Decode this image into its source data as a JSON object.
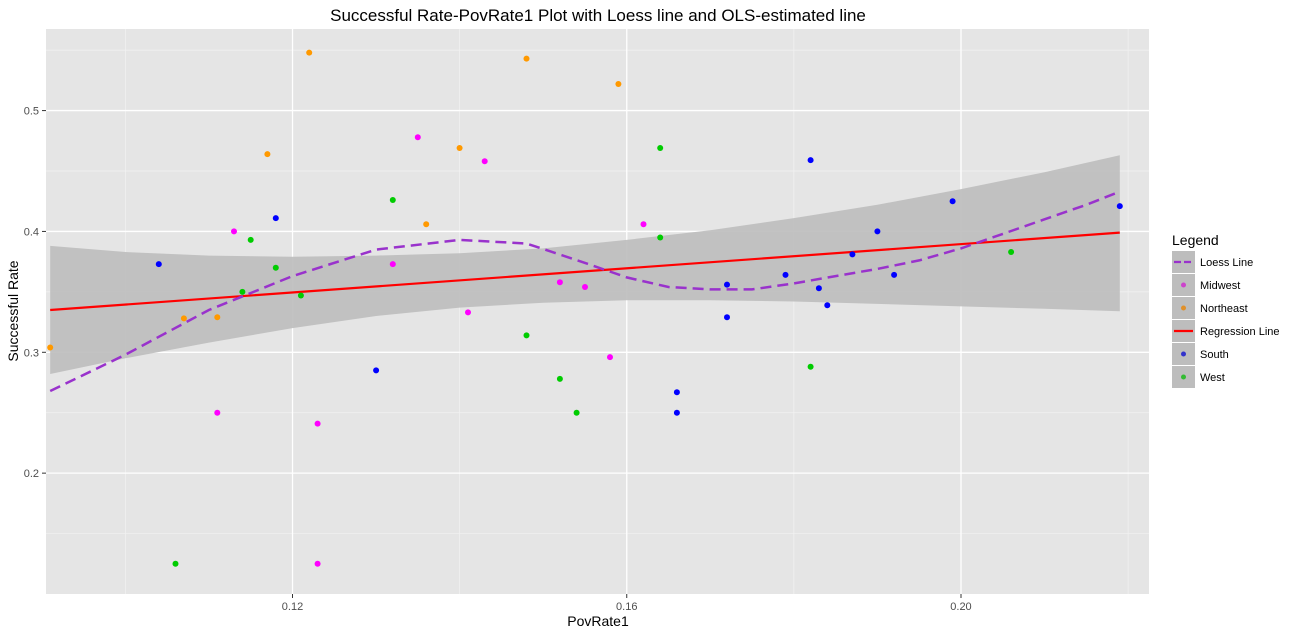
{
  "chart_data": {
    "type": "scatter",
    "title": "Successful Rate-PovRate1 Plot with Loess line and OLS-estimated line",
    "xlabel": "PovRate1",
    "ylabel": "Successful Rate",
    "xlim": [
      0.0905,
      0.2225
    ],
    "ylim": [
      0.1,
      0.5675
    ],
    "x_ticks": [
      0.12,
      0.16,
      0.2
    ],
    "x_tick_labels": [
      "0.12",
      "0.16",
      "0.20"
    ],
    "y_ticks": [
      0.2,
      0.3,
      0.4,
      0.5
    ],
    "y_tick_labels": [
      "0.2",
      "0.3",
      "0.4",
      "0.5"
    ],
    "grid": true,
    "background": "#e5e5e5",
    "legend": {
      "title": "Legend",
      "placement": "right",
      "entries": [
        {
          "label": "Loess Line",
          "kind": "dashed-line",
          "color": "#9932cc"
        },
        {
          "label": "Midwest",
          "kind": "point",
          "color": "#cc44cc"
        },
        {
          "label": "Northeast",
          "kind": "point",
          "color": "#e0902a"
        },
        {
          "label": "Regression Line",
          "kind": "line",
          "color": "#ff0000"
        },
        {
          "label": "South",
          "kind": "point",
          "color": "#3333cc"
        },
        {
          "label": "West",
          "kind": "point",
          "color": "#33bb33"
        }
      ]
    },
    "series": [
      {
        "name": "Northeast",
        "color": "#ff9900",
        "points": [
          [
            0.091,
            0.304
          ],
          [
            0.107,
            0.328
          ],
          [
            0.111,
            0.329
          ],
          [
            0.117,
            0.464
          ],
          [
            0.122,
            0.548
          ],
          [
            0.136,
            0.406
          ],
          [
            0.14,
            0.469
          ],
          [
            0.148,
            0.543
          ],
          [
            0.159,
            0.522
          ]
        ]
      },
      {
        "name": "Midwest",
        "color": "#ff00ff",
        "points": [
          [
            0.111,
            0.25
          ],
          [
            0.113,
            0.4
          ],
          [
            0.123,
            0.241
          ],
          [
            0.123,
            0.125
          ],
          [
            0.132,
            0.373
          ],
          [
            0.135,
            0.478
          ],
          [
            0.141,
            0.333
          ],
          [
            0.143,
            0.458
          ],
          [
            0.152,
            0.358
          ],
          [
            0.155,
            0.354
          ],
          [
            0.158,
            0.296
          ],
          [
            0.162,
            0.406
          ]
        ]
      },
      {
        "name": "South",
        "color": "#0000ff",
        "points": [
          [
            0.104,
            0.373
          ],
          [
            0.118,
            0.411
          ],
          [
            0.13,
            0.285
          ],
          [
            0.166,
            0.267
          ],
          [
            0.166,
            0.25
          ],
          [
            0.172,
            0.356
          ],
          [
            0.172,
            0.329
          ],
          [
            0.179,
            0.364
          ],
          [
            0.182,
            0.459
          ],
          [
            0.183,
            0.353
          ],
          [
            0.184,
            0.339
          ],
          [
            0.187,
            0.381
          ],
          [
            0.19,
            0.4
          ],
          [
            0.192,
            0.364
          ],
          [
            0.199,
            0.425
          ],
          [
            0.219,
            0.421
          ]
        ]
      },
      {
        "name": "West",
        "color": "#00cc00",
        "points": [
          [
            0.106,
            0.125
          ],
          [
            0.114,
            0.35
          ],
          [
            0.115,
            0.393
          ],
          [
            0.118,
            0.37
          ],
          [
            0.121,
            0.347
          ],
          [
            0.132,
            0.426
          ],
          [
            0.148,
            0.314
          ],
          [
            0.152,
            0.278
          ],
          [
            0.154,
            0.25
          ],
          [
            0.164,
            0.469
          ],
          [
            0.164,
            0.395
          ],
          [
            0.182,
            0.288
          ],
          [
            0.206,
            0.383
          ]
        ]
      }
    ],
    "regression_line": {
      "name": "Regression Line",
      "color": "#ff0000",
      "x": [
        0.091,
        0.219
      ],
      "y": [
        0.335,
        0.399
      ]
    },
    "loess_line": {
      "name": "Loess Line",
      "color": "#9932cc",
      "x": [
        0.091,
        0.1,
        0.11,
        0.12,
        0.13,
        0.14,
        0.148,
        0.155,
        0.16,
        0.165,
        0.17,
        0.175,
        0.18,
        0.185,
        0.19,
        0.195,
        0.2,
        0.205,
        0.21,
        0.215,
        0.219
      ],
      "y": [
        0.268,
        0.298,
        0.335,
        0.363,
        0.385,
        0.393,
        0.39,
        0.374,
        0.362,
        0.354,
        0.352,
        0.352,
        0.357,
        0.363,
        0.369,
        0.376,
        0.386,
        0.398,
        0.41,
        0.422,
        0.433
      ]
    },
    "confidence_band": {
      "color": "#bdbdbd",
      "x": [
        0.091,
        0.1,
        0.11,
        0.12,
        0.13,
        0.14,
        0.15,
        0.16,
        0.17,
        0.18,
        0.19,
        0.2,
        0.21,
        0.219
      ],
      "upper": [
        0.388,
        0.383,
        0.38,
        0.379,
        0.38,
        0.382,
        0.386,
        0.393,
        0.401,
        0.411,
        0.422,
        0.435,
        0.449,
        0.463
      ],
      "lower": [
        0.282,
        0.295,
        0.308,
        0.32,
        0.33,
        0.337,
        0.341,
        0.343,
        0.343,
        0.342,
        0.34,
        0.338,
        0.336,
        0.334
      ]
    }
  }
}
